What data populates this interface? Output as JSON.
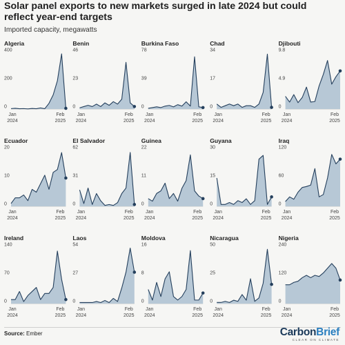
{
  "header": {
    "title": "Solar panel exports to new markets surged in late 2024 but could reflect year-end targets",
    "subtitle": "Imported capacity, megawatts"
  },
  "footer": {
    "source_label": "Source:",
    "source_text": "Ember",
    "logo_text_a": "Carbon",
    "logo_text_b": "Brief",
    "logo_tagline": "CLEAR ON CLIMATE"
  },
  "colors": {
    "area_fill": "#b7c8d6",
    "line": "#243f5c",
    "point": "#243f5c",
    "axis": "#bdbdbd",
    "text": "#444444"
  },
  "chart_data": [
    {
      "type": "area",
      "title": "Algeria",
      "x_start_label": "Jan\n2024",
      "x_end_label": "Feb\n2025",
      "y_ticks": [
        0,
        200,
        400
      ],
      "ylim": [
        0,
        400
      ],
      "values": [
        3,
        5,
        2,
        3,
        1,
        4,
        2,
        8,
        2,
        40,
        100,
        200,
        390,
        5
      ]
    },
    {
      "type": "area",
      "title": "Benin",
      "x_start_label": "Jan\n2024",
      "x_end_label": "Feb\n2025",
      "y_ticks": [
        0,
        23,
        46
      ],
      "ylim": [
        0,
        46
      ],
      "values": [
        1,
        2,
        3,
        2,
        4,
        2,
        5,
        3,
        6,
        4,
        8,
        38,
        5,
        2
      ]
    },
    {
      "type": "area",
      "title": "Burkina Faso",
      "x_start_label": "Jan\n2024",
      "x_end_label": "Feb\n2025",
      "y_ticks": [
        0,
        39,
        78
      ],
      "ylim": [
        0,
        78
      ],
      "values": [
        1,
        2,
        3,
        2,
        4,
        5,
        3,
        6,
        4,
        10,
        4,
        72,
        3,
        2
      ]
    },
    {
      "type": "area",
      "title": "Chad",
      "x_start_label": "Jan\n2024",
      "x_end_label": "Feb\n2025",
      "y_ticks": [
        0,
        17,
        34
      ],
      "ylim": [
        0,
        34
      ],
      "values": [
        3,
        1,
        2,
        3,
        2,
        3,
        1,
        2,
        2,
        1,
        3,
        10,
        33,
        1
      ]
    },
    {
      "type": "area",
      "title": "Djibouti",
      "x_start_label": "Jan\n2024",
      "x_end_label": "Feb\n2025",
      "y_ticks": [
        0,
        4.9,
        9.8
      ],
      "ylim": [
        0,
        9.8
      ],
      "values": [
        2.2,
        1.2,
        2.5,
        1.1,
        2,
        3.8,
        1.2,
        1.3,
        4,
        6,
        8.4,
        4.3,
        5.6,
        6.6
      ]
    },
    {
      "type": "area",
      "title": "Ecuador",
      "x_start_label": "Jan\n2024",
      "x_end_label": "Feb\n2025",
      "y_ticks": [
        0,
        10,
        20
      ],
      "ylim": [
        0,
        20
      ],
      "values": [
        1,
        3,
        3,
        4,
        2,
        6,
        5,
        8,
        11,
        6,
        12,
        13,
        19,
        10
      ]
    },
    {
      "type": "area",
      "title": "El Salvador",
      "x_start_label": "Jan\n2024",
      "x_end_label": "Feb\n2025",
      "y_ticks": [
        0,
        31,
        62
      ],
      "ylim": [
        0,
        62
      ],
      "values": [
        18,
        3,
        20,
        2,
        14,
        6,
        1,
        2,
        1,
        4,
        14,
        20,
        59,
        2
      ]
    },
    {
      "type": "area",
      "title": "Guinea",
      "x_start_label": "Jan\n2024",
      "x_end_label": "Feb\n2025",
      "y_ticks": [
        0,
        11,
        22
      ],
      "ylim": [
        0,
        22
      ],
      "values": [
        3,
        2,
        5,
        6,
        9,
        3,
        5,
        2,
        7,
        10,
        20,
        6,
        4,
        3
      ]
    },
    {
      "type": "area",
      "title": "Guyana",
      "x_start_label": "Jan\n2024",
      "x_end_label": "Feb\n2025",
      "y_ticks": [
        0,
        15,
        30
      ],
      "ylim": [
        0,
        30
      ],
      "values": [
        15,
        1,
        1,
        2,
        1,
        3,
        2,
        4,
        1,
        3,
        25,
        27,
        1,
        5
      ]
    },
    {
      "type": "area",
      "title": "Iraq",
      "x_start_label": "Jan\n2024",
      "x_end_label": "Feb\n2025",
      "y_ticks": [
        0,
        60,
        120
      ],
      "ylim": [
        0,
        120
      ],
      "values": [
        10,
        20,
        15,
        30,
        40,
        42,
        45,
        80,
        20,
        25,
        60,
        110,
        90,
        100
      ]
    },
    {
      "type": "area",
      "title": "Ireland",
      "x_start_label": "Jan\n2024",
      "x_end_label": "Feb\n2025",
      "y_ticks": [
        0,
        70,
        140
      ],
      "ylim": [
        0,
        140
      ],
      "values": [
        10,
        10,
        30,
        5,
        20,
        30,
        40,
        10,
        25,
        25,
        40,
        130,
        60,
        10
      ]
    },
    {
      "type": "area",
      "title": "Laos",
      "x_start_label": "Jan\n2024",
      "x_end_label": "Feb\n2025",
      "y_ticks": [
        0,
        27,
        54
      ],
      "ylim": [
        0,
        54
      ],
      "values": [
        1,
        1,
        1,
        1,
        2,
        1,
        3,
        1,
        5,
        2,
        15,
        30,
        53,
        30
      ]
    },
    {
      "type": "area",
      "title": "Moldova",
      "x_start_label": "Jan\n2024",
      "x_end_label": "Feb\n2025",
      "y_ticks": [
        0,
        8,
        16
      ],
      "ylim": [
        0,
        16
      ],
      "values": [
        4,
        1,
        6,
        2,
        7,
        9,
        2,
        1,
        2,
        4,
        15,
        1,
        1,
        3
      ]
    },
    {
      "type": "area",
      "title": "Nicaragua",
      "x_start_label": "Jan\n2024",
      "x_end_label": "Feb\n2025",
      "y_ticks": [
        0,
        25,
        50
      ],
      "ylim": [
        0,
        50
      ],
      "values": [
        1,
        1,
        2,
        1,
        3,
        2,
        8,
        3,
        22,
        2,
        5,
        18,
        48,
        17
      ]
    },
    {
      "type": "area",
      "title": "Nigeria",
      "x_start_label": "Jan\n2024",
      "x_end_label": "Feb\n2025",
      "y_ticks": [
        0,
        120,
        240
      ],
      "ylim": [
        0,
        240
      ],
      "values": [
        80,
        80,
        90,
        95,
        110,
        120,
        110,
        120,
        115,
        130,
        150,
        170,
        150,
        100
      ]
    }
  ]
}
